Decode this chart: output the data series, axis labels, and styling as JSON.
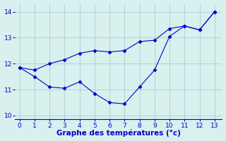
{
  "line1_x": [
    0,
    1,
    2,
    3,
    4,
    5,
    6,
    7,
    8,
    9,
    10,
    11,
    12,
    13
  ],
  "line1_y": [
    11.85,
    11.75,
    12.0,
    12.15,
    12.4,
    12.5,
    12.45,
    12.5,
    12.85,
    12.9,
    13.35,
    13.45,
    13.3,
    14.0
  ],
  "line2_x": [
    0,
    1,
    2,
    3,
    4,
    5,
    6,
    7,
    8,
    9,
    10,
    11,
    12,
    13
  ],
  "line2_y": [
    11.85,
    11.5,
    11.1,
    11.05,
    11.3,
    10.85,
    10.5,
    10.45,
    11.1,
    11.75,
    13.05,
    13.45,
    13.3,
    14.0
  ],
  "xlim": [
    -0.3,
    13.5
  ],
  "ylim": [
    9.85,
    14.3
  ],
  "xticks": [
    0,
    1,
    2,
    3,
    4,
    5,
    6,
    7,
    8,
    9,
    10,
    11,
    12,
    13
  ],
  "yticks": [
    10,
    11,
    12,
    13,
    14
  ],
  "xlabel": "Graphe des températures (°c)",
  "line_color": "#0000cc",
  "bg_color": "#d8f0ee",
  "grid_color": "#b0d8d8",
  "xlabel_fontsize": 7.5,
  "tick_fontsize": 6.5,
  "marker": "D",
  "markersize": 2.5,
  "linewidth": 0.8
}
